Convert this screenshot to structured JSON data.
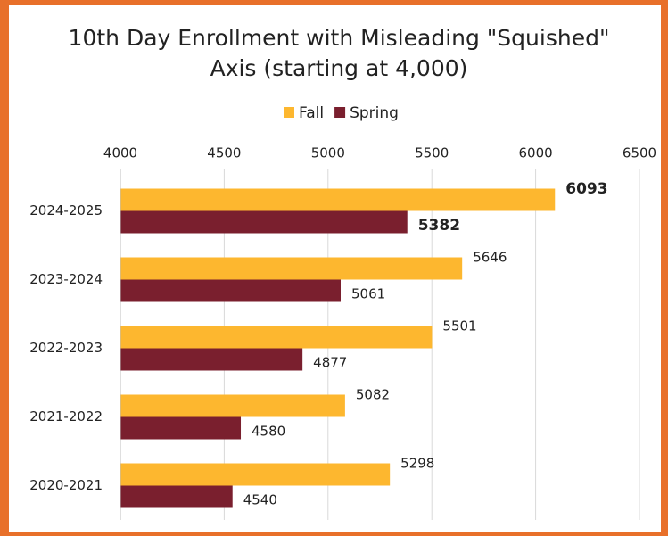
{
  "chart_data": {
    "type": "hbar",
    "title": [
      "10th Day Enrollment with Misleading \"Squished\"",
      "Axis (starting at 4,000)"
    ],
    "categories": [
      "2024-2025",
      "2023-2024",
      "2022-2023",
      "2021-2022",
      "2020-2021"
    ],
    "series": [
      {
        "name": "Fall",
        "color": "#FDB72F",
        "values": [
          6093,
          5646,
          5501,
          5082,
          5298
        ]
      },
      {
        "name": "Spring",
        "color": "#7A1F2E",
        "values": [
          5382,
          5061,
          4877,
          4580,
          4540
        ]
      }
    ],
    "xlim": [
      4000,
      6500
    ],
    "xticks": [
      4000,
      4500,
      5000,
      5500,
      6000,
      6500
    ],
    "grid": true,
    "legend": "top",
    "emphasized_categories": [
      0
    ]
  }
}
